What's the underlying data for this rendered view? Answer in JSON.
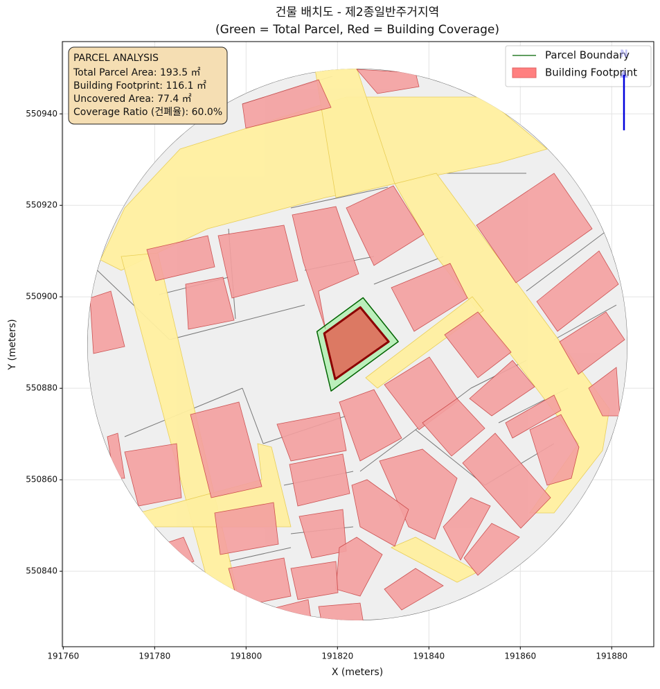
{
  "chart_data": {
    "type": "map",
    "title": "건물 배치도 - 제2종일반주거지역",
    "subtitle": "(Green = Total Parcel, Red = Building Coverage)",
    "xlabel": "X (meters)",
    "ylabel": "Y (meters)",
    "xlim": [
      191759.8,
      191889.2
    ],
    "ylim": [
      550823.5,
      550955.8
    ],
    "xticks": [
      191760,
      191780,
      191800,
      191820,
      191840,
      191860,
      191880
    ],
    "yticks": [
      550840,
      550860,
      550880,
      550900,
      550920,
      550940
    ],
    "grid": true,
    "legend_loc": "upper right",
    "series": [
      {
        "name": "Parcel Boundary",
        "color": "#006400",
        "fill": "#90ee90",
        "x": [
          191815.5,
          191825.6,
          191833.3,
          191818.6
        ],
        "y": [
          550892.4,
          550899.8,
          550890.2,
          550879.4
        ]
      },
      {
        "name": "Building Footprint",
        "color": "#8b0000",
        "fill": "#ff7f7f",
        "shape_fill": "#e06c5a",
        "x": [
          191817.1,
          191825.0,
          191831.2,
          191819.5
        ],
        "y": [
          550892.0,
          550897.7,
          550890.2,
          550882.0
        ]
      }
    ],
    "annotation": {
      "title": "PARCEL ANALYSIS",
      "lines": [
        "Total Parcel Area: 193.5 ㎡",
        "Building Footprint: 116.1 ㎡",
        "Uncovered Area: 77.4 ㎡",
        "Coverage Ratio (건폐율): 60.0%"
      ]
    },
    "north_label": "N"
  }
}
